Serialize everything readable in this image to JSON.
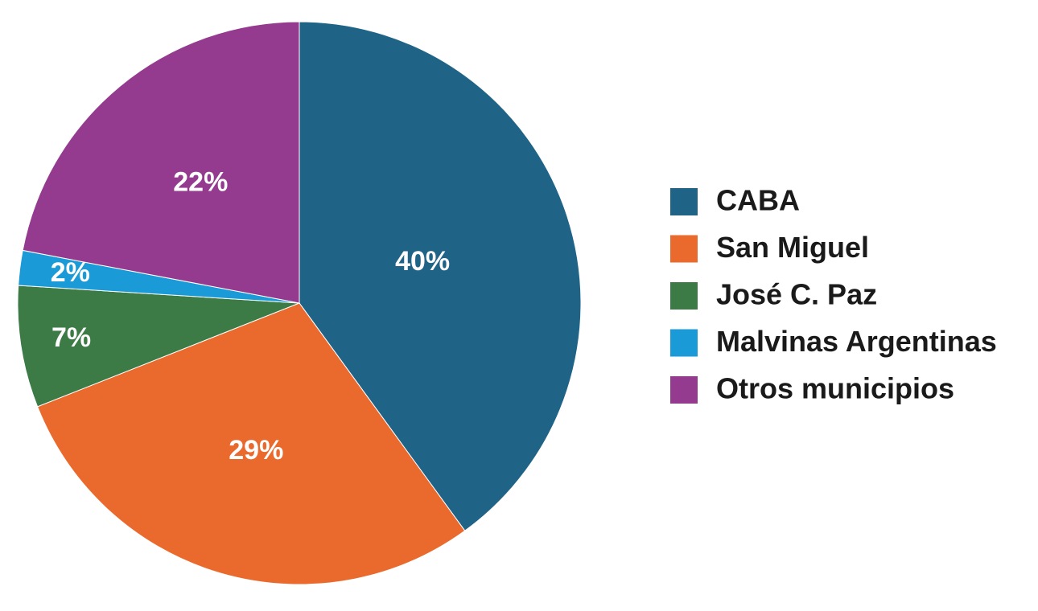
{
  "chart_data": {
    "type": "pie",
    "categories": [
      "CABA",
      "San Miguel",
      "José C. Paz",
      "Malvinas Argentinas",
      "Otros municipios"
    ],
    "values": [
      40,
      29,
      7,
      2,
      22
    ],
    "value_labels": [
      "40%",
      "29%",
      "7%",
      "2%",
      "22%"
    ],
    "colors": [
      "#1f6387",
      "#ea6a2d",
      "#3c7b45",
      "#1a9ad6",
      "#953b8f"
    ],
    "legend": "right"
  }
}
